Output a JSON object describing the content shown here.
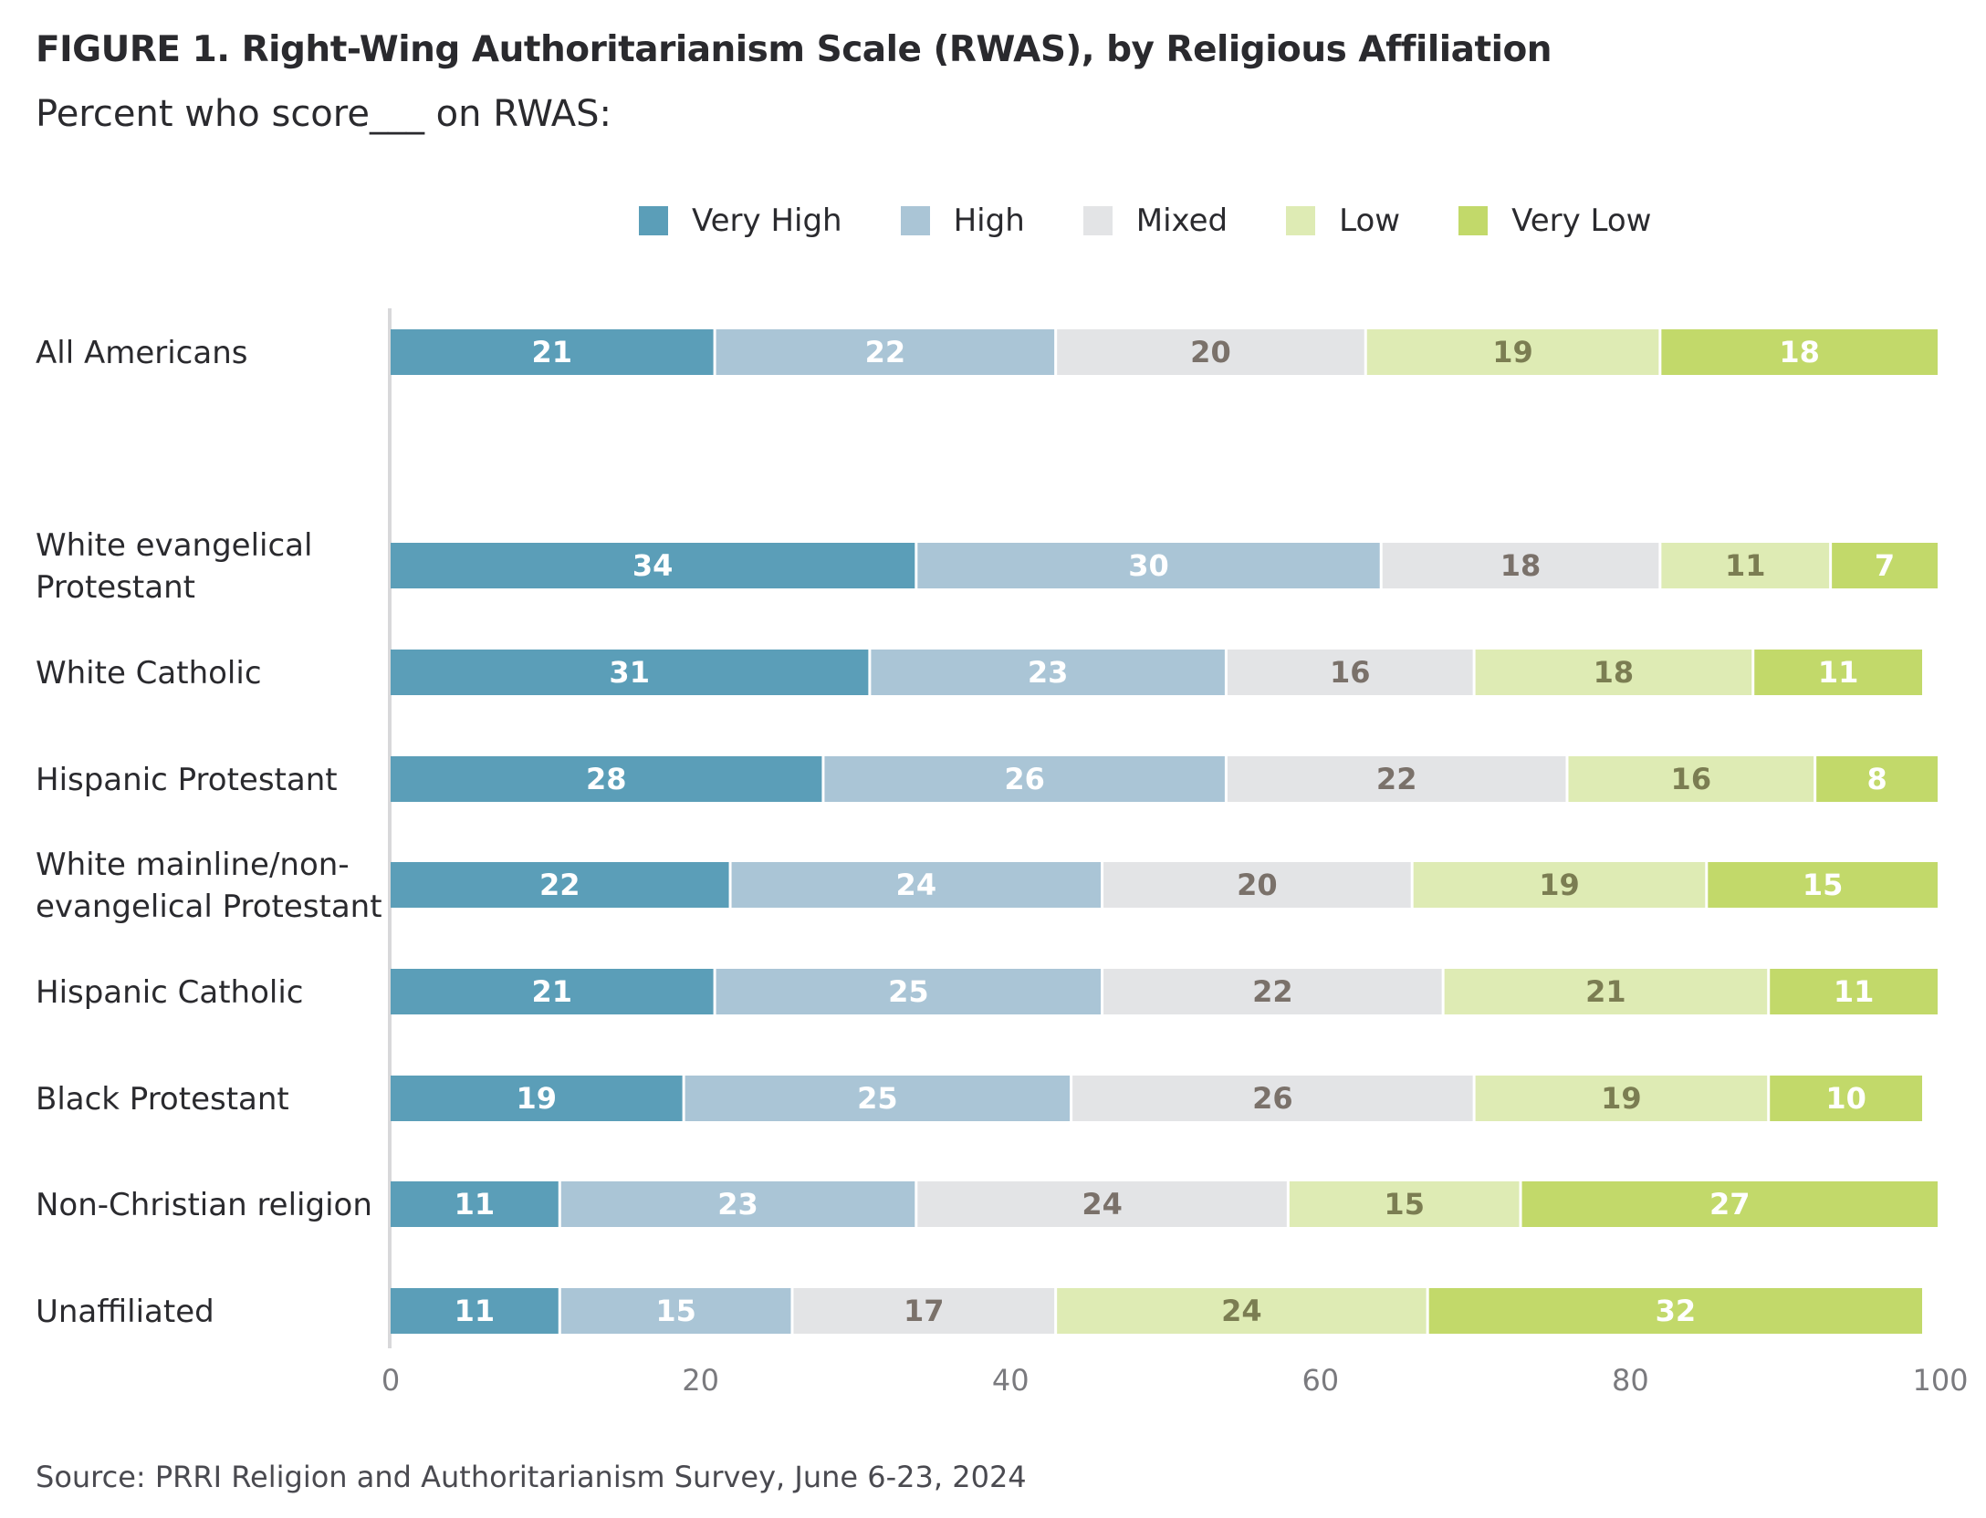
{
  "chart_data": {
    "type": "bar",
    "orientation": "horizontal",
    "stacked": true,
    "title": "FIGURE 1.  Right-Wing Authoritarianism Scale (RWAS), by Religious Affiliation",
    "subtitle": "Percent who score___ on RWAS:",
    "xlabel": "",
    "ylabel": "",
    "xlim": [
      0,
      100
    ],
    "xticks": [
      0,
      20,
      40,
      60,
      80,
      100
    ],
    "grid": false,
    "legend_position": "top",
    "categories": [
      [
        "All Americans"
      ],
      [
        "White evangelical",
        "Protestant"
      ],
      [
        "White Catholic"
      ],
      [
        "Hispanic Protestant"
      ],
      [
        "White mainline/non-",
        "evangelical Protestant"
      ],
      [
        "Hispanic Catholic"
      ],
      [
        "Black Protestant"
      ],
      [
        "Non-Christian religion"
      ],
      [
        "Unaffiliated"
      ]
    ],
    "series": [
      {
        "name": "Very High",
        "color": "#5b9eb8",
        "label_color": "#ffffff",
        "values": [
          21,
          34,
          31,
          28,
          22,
          21,
          19,
          11,
          11
        ]
      },
      {
        "name": "High",
        "color": "#aac5d6",
        "label_color": "#ffffff",
        "values": [
          22,
          30,
          23,
          26,
          24,
          25,
          25,
          23,
          15
        ]
      },
      {
        "name": "Mixed",
        "color": "#e3e4e6",
        "label_color": "#7a716a",
        "values": [
          20,
          18,
          16,
          22,
          20,
          22,
          26,
          24,
          17
        ]
      },
      {
        "name": "Low",
        "color": "#deebb4",
        "label_color": "#7b7d52",
        "values": [
          19,
          11,
          18,
          16,
          19,
          21,
          19,
          15,
          24
        ]
      },
      {
        "name": "Very Low",
        "color": "#c2d96a",
        "label_color": "#ffffff",
        "values": [
          18,
          7,
          11,
          8,
          15,
          11,
          10,
          27,
          32
        ]
      }
    ],
    "source": "Source: PRRI Religion and Authoritarianism Survey, June 6-23, 2024"
  }
}
